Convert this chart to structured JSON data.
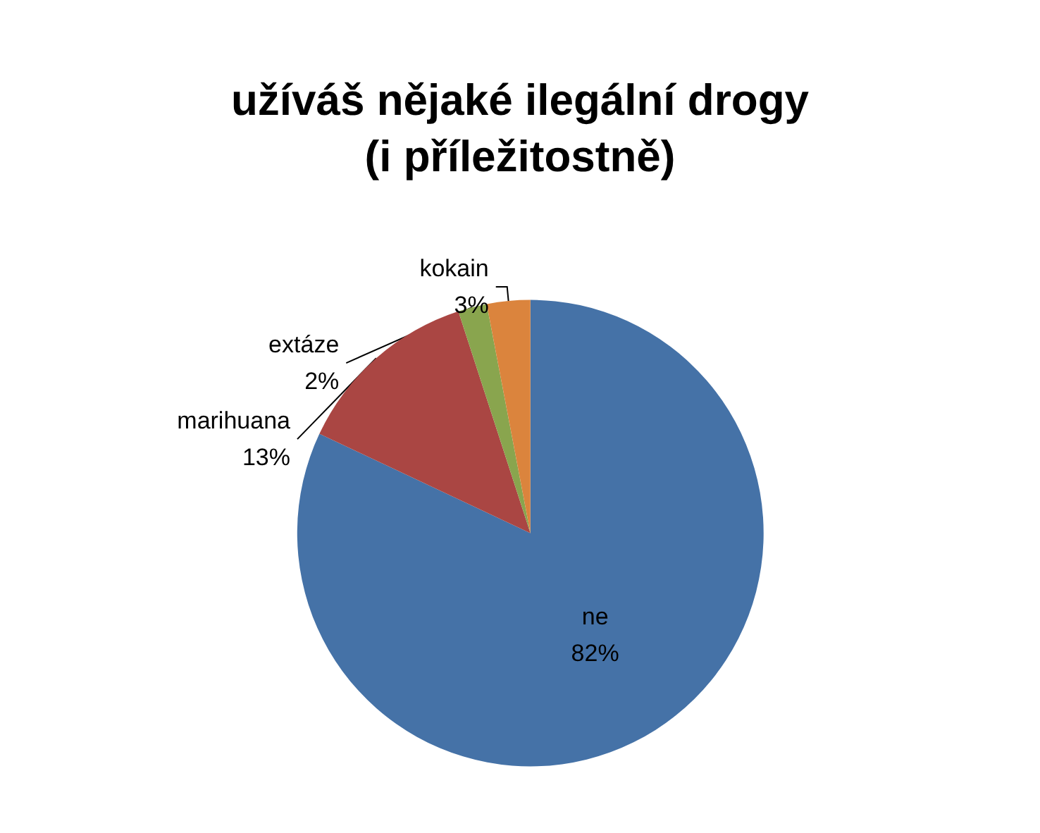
{
  "chart_data": {
    "type": "pie",
    "title": "užíváš nějaké ilegální drogy\n(i příležitostně)",
    "categories": [
      "ne",
      "marihuana",
      "extáze",
      "kokain"
    ],
    "values": [
      82,
      13,
      2,
      3
    ],
    "colors": [
      "#4572a7",
      "#aa4643",
      "#89a54e",
      "#db843d"
    ],
    "value_labels": [
      "82%",
      "13%",
      "2%",
      "3%"
    ],
    "legend": false
  }
}
